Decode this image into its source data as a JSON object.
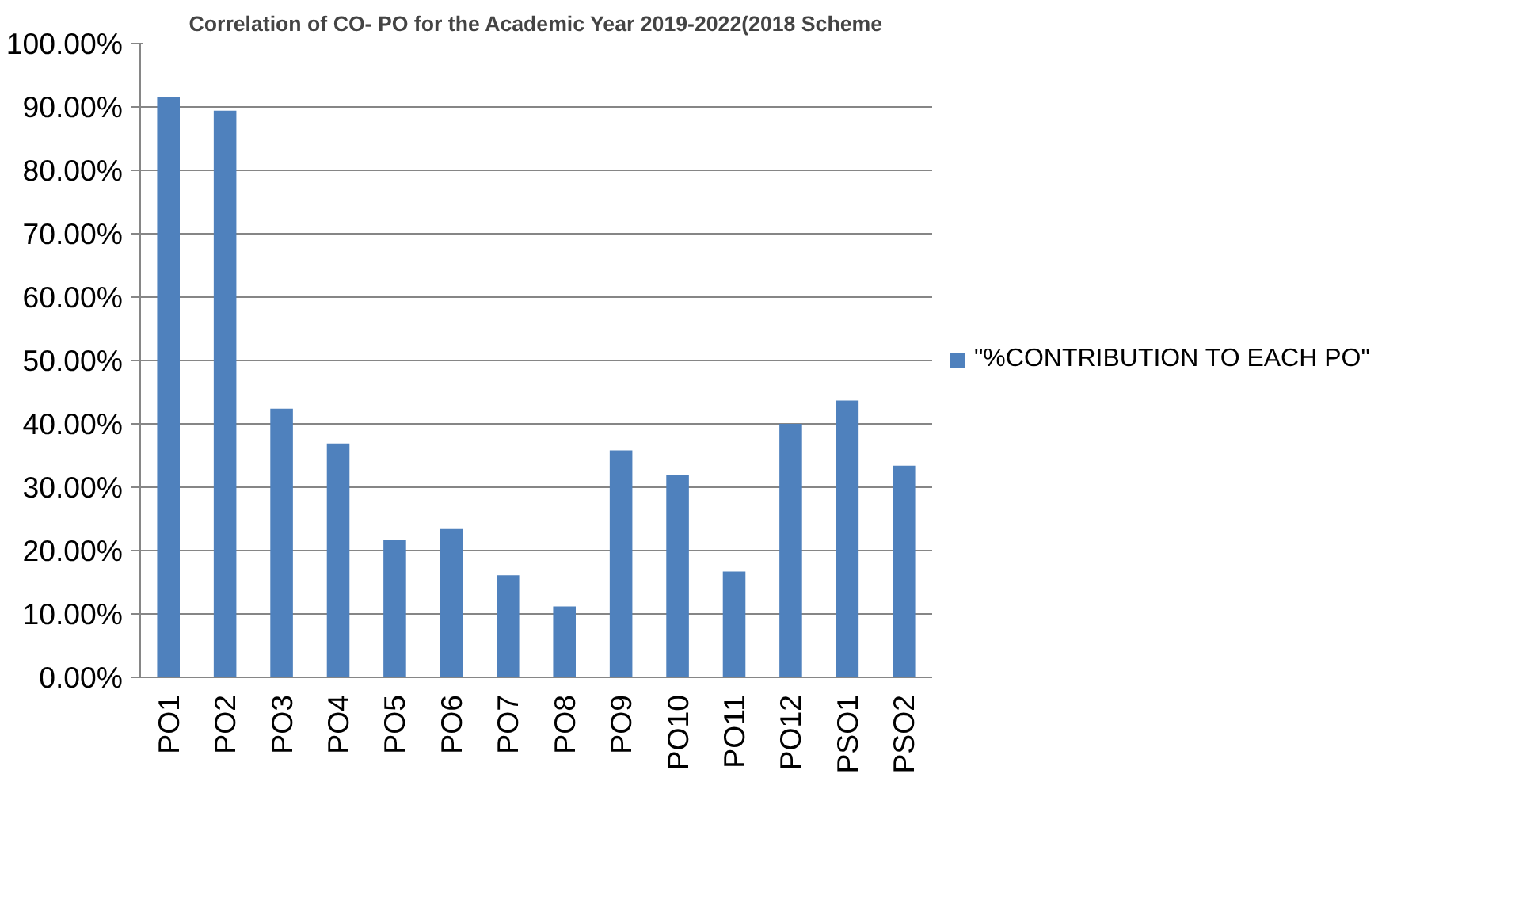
{
  "chart_data": {
    "type": "bar",
    "title": "Correlation of CO- PO for the Academic Year 2019-2022(2018 Scheme",
    "categories": [
      "PO1",
      "PO2",
      "PO3",
      "PO4",
      "PO5",
      "PO6",
      "PO7",
      "PO8",
      "PO9",
      "PO10",
      "PO11",
      "PO12",
      "PSO1",
      "PSO2"
    ],
    "series": [
      {
        "name": "\"%CONTRIBUTION TO EACH PO\"",
        "color": "#4f81bd",
        "values": [
          91.6,
          89.4,
          42.4,
          36.9,
          21.7,
          23.4,
          16.1,
          11.2,
          35.8,
          32.0,
          16.7,
          40.0,
          43.7,
          33.4
        ]
      }
    ],
    "ylim": [
      0,
      100
    ],
    "yticks": [
      {
        "value": 0,
        "label": "0.00%"
      },
      {
        "value": 10,
        "label": "10.00%"
      },
      {
        "value": 20,
        "label": "20.00%"
      },
      {
        "value": 30,
        "label": "30.00%"
      },
      {
        "value": 40,
        "label": "40.00%"
      },
      {
        "value": 50,
        "label": "50.00%"
      },
      {
        "value": 60,
        "label": "60.00%"
      },
      {
        "value": 70,
        "label": "70.00%"
      },
      {
        "value": 80,
        "label": "80.00%"
      },
      {
        "value": 90,
        "label": "90.00%"
      },
      {
        "value": 100,
        "label": "100.00%"
      }
    ],
    "grid": "y",
    "legend": "right"
  }
}
